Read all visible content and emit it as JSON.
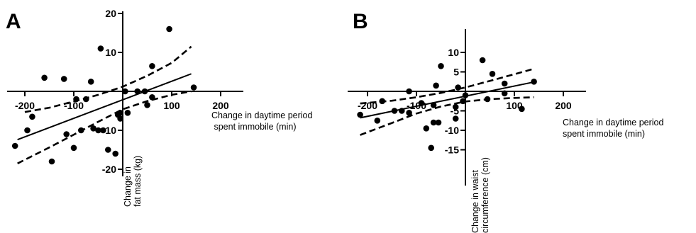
{
  "chart_data": [
    {
      "type": "scatter",
      "panel_label": "A",
      "xlabel_lines": [
        "Change in daytime period",
        " spent immobile (min)"
      ],
      "ylabel_lines": [
        "Change in",
        "fat mass (kg)"
      ],
      "xlim": [
        -225,
        240
      ],
      "ylim": [
        -22,
        20
      ],
      "x_ticks": [
        -200,
        -100,
        100,
        200
      ],
      "y_ticks": [
        20,
        10,
        -10,
        -20
      ],
      "points": [
        [
          -220,
          -14
        ],
        [
          -195,
          -10
        ],
        [
          -185,
          -6.5
        ],
        [
          -160,
          3.5
        ],
        [
          -145,
          -18
        ],
        [
          -120,
          3.2
        ],
        [
          -115,
          -11
        ],
        [
          -100,
          -14.5
        ],
        [
          -95,
          -2
        ],
        [
          -85,
          -10
        ],
        [
          -75,
          -2
        ],
        [
          -65,
          2.5
        ],
        [
          -60,
          -9.5
        ],
        [
          -50,
          -10
        ],
        [
          -45,
          11
        ],
        [
          -40,
          -10
        ],
        [
          -30,
          -15
        ],
        [
          -15,
          -16
        ],
        [
          -10,
          -6
        ],
        [
          -5,
          -7
        ],
        [
          -5,
          -5.5
        ],
        [
          5,
          0
        ],
        [
          10,
          -5.5
        ],
        [
          30,
          0
        ],
        [
          45,
          0
        ],
        [
          50,
          -3.5
        ],
        [
          60,
          6.5
        ],
        [
          60,
          -1.5
        ],
        [
          95,
          16
        ],
        [
          145,
          1
        ]
      ],
      "fit_line": {
        "x": [
          -215,
          140
        ],
        "y": [
          -12.4,
          4.5
        ]
      },
      "ci_upper": [
        [
          -200,
          -5.3
        ],
        [
          -150,
          -4.2
        ],
        [
          -100,
          -2.6
        ],
        [
          -50,
          -0.9
        ],
        [
          0,
          1.2
        ],
        [
          50,
          4
        ],
        [
          100,
          7.3
        ],
        [
          140,
          11.5
        ]
      ],
      "ci_lower": [
        [
          -215,
          -18.5
        ],
        [
          -150,
          -14.4
        ],
        [
          -100,
          -11.1
        ],
        [
          -50,
          -7.8
        ],
        [
          0,
          -4.6
        ],
        [
          50,
          -2.5
        ],
        [
          100,
          -0.9
        ],
        [
          140,
          0
        ]
      ]
    },
    {
      "type": "scatter",
      "panel_label": "B",
      "xlabel_lines": [
        "Change in daytime period",
        "spent immobile (min)"
      ],
      "ylabel_lines": [
        "Change in waist",
        "circumference (cm)"
      ],
      "xlim": [
        -225,
        240
      ],
      "ylim": [
        -16,
        10
      ],
      "x_ticks": [
        -200,
        -100,
        100,
        200
      ],
      "y_ticks": [
        10,
        5,
        -5,
        -10,
        -15
      ],
      "points": [
        [
          -215,
          -6
        ],
        [
          -180,
          -7.5
        ],
        [
          -170,
          -2.5
        ],
        [
          -145,
          -5
        ],
        [
          -130,
          -5
        ],
        [
          -115,
          -5.5
        ],
        [
          -115,
          0
        ],
        [
          -90,
          -3
        ],
        [
          -80,
          -9.5
        ],
        [
          -70,
          -14.5
        ],
        [
          -65,
          -8
        ],
        [
          -65,
          -3.5
        ],
        [
          -60,
          1.5
        ],
        [
          -55,
          -8
        ],
        [
          -50,
          6.5
        ],
        [
          -20,
          -7
        ],
        [
          -20,
          -4
        ],
        [
          -15,
          1
        ],
        [
          -5,
          -2.5
        ],
        [
          0,
          -1
        ],
        [
          35,
          8
        ],
        [
          45,
          -2
        ],
        [
          55,
          4.5
        ],
        [
          80,
          -0.5
        ],
        [
          80,
          2
        ],
        [
          115,
          -4.5
        ],
        [
          140,
          2.5
        ]
      ],
      "fit_line": {
        "x": [
          -215,
          140
        ],
        "y": [
          -6.8,
          2.4
        ]
      },
      "ci_upper": [
        [
          -215,
          -3.1
        ],
        [
          -150,
          -2.4
        ],
        [
          -100,
          -1.5
        ],
        [
          -50,
          -0.4
        ],
        [
          0,
          1
        ],
        [
          50,
          2.7
        ],
        [
          100,
          4.4
        ],
        [
          140,
          5.8
        ]
      ],
      "ci_lower": [
        [
          -215,
          -11.2
        ],
        [
          -150,
          -8.1
        ],
        [
          -100,
          -5.7
        ],
        [
          -50,
          -3.9
        ],
        [
          0,
          -2.6
        ],
        [
          50,
          -2
        ],
        [
          100,
          -1.7
        ],
        [
          140,
          -1.5
        ]
      ]
    }
  ]
}
